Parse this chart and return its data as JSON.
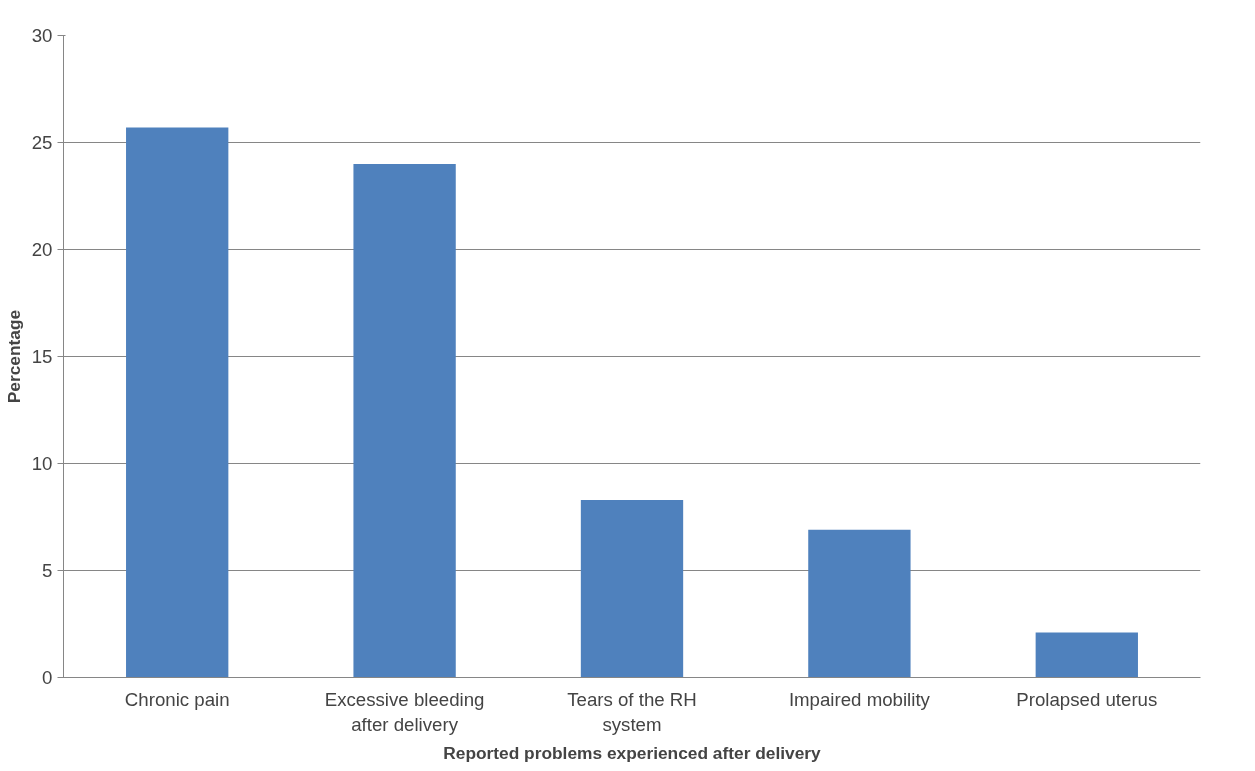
{
  "chart_data": {
    "type": "bar",
    "xlabel": "Reported problems experienced after delivery",
    "ylabel": "Percentage",
    "categories": [
      "Chronic pain",
      "Excessive bleeding\nafter delivery",
      "Tears of the RH\nsystem",
      "Impaired mobility",
      "Prolapsed uterus"
    ],
    "values": [
      25.7,
      24.0,
      8.3,
      6.9,
      2.1
    ],
    "color": "#4f81bd",
    "ylim": [
      0,
      30
    ],
    "yticks": [
      0,
      5,
      10,
      15,
      20,
      25,
      30
    ],
    "grid": "y"
  }
}
